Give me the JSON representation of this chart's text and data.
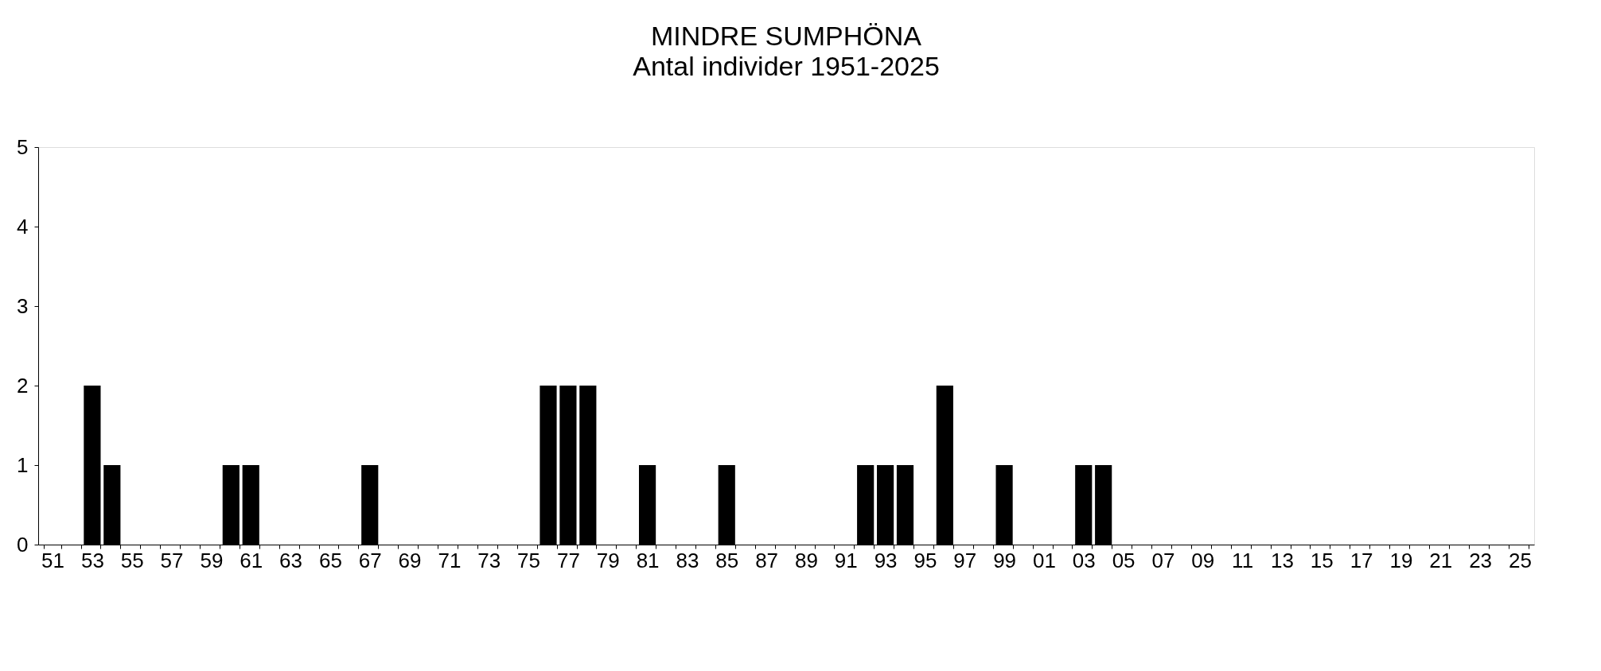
{
  "chart_data": {
    "type": "bar",
    "title": "MINDRE SUMPHÖNA",
    "subtitle": "Antal individer 1951-2025",
    "categories": [
      "51",
      null,
      "53",
      null,
      "55",
      null,
      "57",
      null,
      "59",
      null,
      "61",
      null,
      "63",
      null,
      "65",
      null,
      "67",
      null,
      "69",
      null,
      "71",
      null,
      "73",
      null,
      "75",
      null,
      "77",
      null,
      "79",
      null,
      "81",
      null,
      "83",
      null,
      "85",
      null,
      "87",
      null,
      "89",
      null,
      "91",
      null,
      "93",
      null,
      "95",
      null,
      "97",
      null,
      "99",
      null,
      "01",
      null,
      "03",
      null,
      "05",
      null,
      "07",
      null,
      "09",
      null,
      "11",
      null,
      "13",
      null,
      "15",
      null,
      "17",
      null,
      "19",
      null,
      "21",
      null,
      "23",
      null,
      "25"
    ],
    "values": [
      0,
      0,
      2,
      1,
      0,
      0,
      0,
      0,
      0,
      1,
      1,
      0,
      0,
      0,
      0,
      0,
      1,
      0,
      0,
      0,
      0,
      0,
      0,
      0,
      0,
      2,
      2,
      2,
      0,
      0,
      1,
      0,
      0,
      0,
      1,
      0,
      0,
      0,
      0,
      0,
      0,
      1,
      1,
      1,
      0,
      2,
      0,
      0,
      1,
      0,
      0,
      0,
      1,
      1,
      0,
      0,
      0,
      0,
      0,
      0,
      0,
      0,
      0,
      0,
      0,
      0,
      0,
      0,
      0,
      0,
      0,
      0,
      0,
      0,
      0
    ],
    "color": "#000000",
    "ylim": [
      0,
      5
    ],
    "yticks": [
      0,
      1,
      2,
      3,
      4,
      5
    ],
    "grid": false
  }
}
